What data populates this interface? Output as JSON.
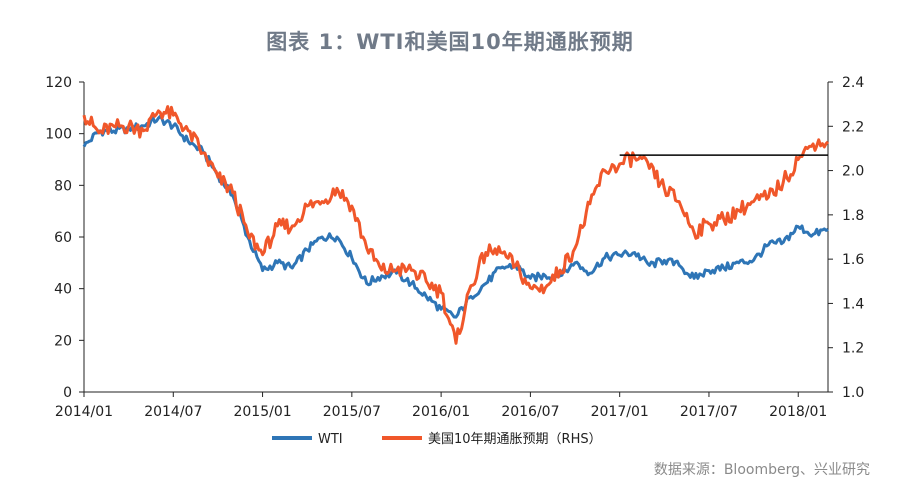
{
  "title": "图表 1：WTI和美国10年期通胀预期",
  "source": "数据来源：Bloomberg、兴业研究",
  "colors": {
    "wti": "#2e75b6",
    "breakeven": "#f0572a",
    "reference": "#000000",
    "axis": "#222222"
  },
  "chart_data": {
    "type": "line",
    "x_tick_labels": [
      "2014/01",
      "2014/07",
      "2015/01",
      "2015/07",
      "2016/01",
      "2016/07",
      "2017/01",
      "2017/07",
      "2018/01"
    ],
    "x_range": [
      "2014/01",
      "2018/03"
    ],
    "y_left": {
      "ticks": [
        "0",
        "20",
        "40",
        "60",
        "80",
        "100",
        "120"
      ],
      "range": [
        0,
        120
      ]
    },
    "y_right": {
      "ticks": [
        "1.0",
        "1.2",
        "1.4",
        "1.6",
        "1.8",
        "2.0",
        "2.2",
        "2.4"
      ],
      "range": [
        1.0,
        2.4
      ]
    },
    "grid": false,
    "legend_position": "bottom",
    "series": [
      {
        "name": "WTI",
        "axis": "left",
        "color": "#2e75b6",
        "points": [
          [
            "2014/01",
            95
          ],
          [
            "2014/02",
            101
          ],
          [
            "2014/03",
            101
          ],
          [
            "2014/04",
            102
          ],
          [
            "2014/05",
            103
          ],
          [
            "2014/06",
            106
          ],
          [
            "2014/07",
            103
          ],
          [
            "2014/08",
            97
          ],
          [
            "2014/09",
            93
          ],
          [
            "2014/10",
            84
          ],
          [
            "2014/11",
            76
          ],
          [
            "2014/12",
            60
          ],
          [
            "2015/01",
            47
          ],
          [
            "2015/02",
            50
          ],
          [
            "2015/03",
            48
          ],
          [
            "2015/04",
            55
          ],
          [
            "2015/05",
            60
          ],
          [
            "2015/06",
            60
          ],
          [
            "2015/07",
            52
          ],
          [
            "2015/08",
            42
          ],
          [
            "2015/09",
            45
          ],
          [
            "2015/10",
            46
          ],
          [
            "2015/11",
            42
          ],
          [
            "2015/12",
            37
          ],
          [
            "2016/01",
            32
          ],
          [
            "2016/02",
            29
          ],
          [
            "2016/03",
            37
          ],
          [
            "2016/04",
            42
          ],
          [
            "2016/05",
            48
          ],
          [
            "2016/06",
            49
          ],
          [
            "2016/07",
            44
          ],
          [
            "2016/08",
            45
          ],
          [
            "2016/09",
            45
          ],
          [
            "2016/10",
            50
          ],
          [
            "2016/11",
            46
          ],
          [
            "2016/12",
            52
          ],
          [
            "2017/01",
            53
          ],
          [
            "2017/02",
            54
          ],
          [
            "2017/03",
            49
          ],
          [
            "2017/04",
            51
          ],
          [
            "2017/05",
            49
          ],
          [
            "2017/06",
            44
          ],
          [
            "2017/07",
            47
          ],
          [
            "2017/08",
            48
          ],
          [
            "2017/09",
            50
          ],
          [
            "2017/10",
            51
          ],
          [
            "2017/11",
            57
          ],
          [
            "2017/12",
            58
          ],
          [
            "2018/01",
            64
          ],
          [
            "2018/02",
            61
          ],
          [
            "2018/03",
            63
          ]
        ]
      },
      {
        "name": "美国10年期通胀预期（RHS）",
        "axis": "right",
        "color": "#f0572a",
        "points": [
          [
            "2014/01",
            2.25
          ],
          [
            "2014/02",
            2.17
          ],
          [
            "2014/03",
            2.2
          ],
          [
            "2014/04",
            2.2
          ],
          [
            "2014/05",
            2.18
          ],
          [
            "2014/06",
            2.27
          ],
          [
            "2014/07",
            2.25
          ],
          [
            "2014/08",
            2.18
          ],
          [
            "2014/09",
            2.08
          ],
          [
            "2014/10",
            1.97
          ],
          [
            "2014/11",
            1.9
          ],
          [
            "2014/12",
            1.72
          ],
          [
            "2015/01",
            1.62
          ],
          [
            "2015/02",
            1.75
          ],
          [
            "2015/03",
            1.75
          ],
          [
            "2015/04",
            1.84
          ],
          [
            "2015/05",
            1.86
          ],
          [
            "2015/06",
            1.92
          ],
          [
            "2015/07",
            1.84
          ],
          [
            "2015/08",
            1.65
          ],
          [
            "2015/09",
            1.55
          ],
          [
            "2015/10",
            1.55
          ],
          [
            "2015/11",
            1.55
          ],
          [
            "2015/12",
            1.5
          ],
          [
            "2016/01",
            1.45
          ],
          [
            "2016/02",
            1.22
          ],
          [
            "2016/03",
            1.48
          ],
          [
            "2016/04",
            1.63
          ],
          [
            "2016/05",
            1.63
          ],
          [
            "2016/06",
            1.57
          ],
          [
            "2016/07",
            1.47
          ],
          [
            "2016/08",
            1.47
          ],
          [
            "2016/09",
            1.55
          ],
          [
            "2016/10",
            1.65
          ],
          [
            "2016/11",
            1.85
          ],
          [
            "2016/12",
            2.0
          ],
          [
            "2017/01",
            2.03
          ],
          [
            "2017/02",
            2.06
          ],
          [
            "2017/03",
            2.01
          ],
          [
            "2017/04",
            1.92
          ],
          [
            "2017/05",
            1.86
          ],
          [
            "2017/06",
            1.72
          ],
          [
            "2017/07",
            1.76
          ],
          [
            "2017/08",
            1.78
          ],
          [
            "2017/09",
            1.82
          ],
          [
            "2017/10",
            1.86
          ],
          [
            "2017/11",
            1.88
          ],
          [
            "2017/12",
            1.95
          ],
          [
            "2018/01",
            2.05
          ],
          [
            "2018/02",
            2.12
          ],
          [
            "2018/03",
            2.13
          ]
        ]
      }
    ],
    "reference_line": {
      "axis": "right",
      "value": 2.07,
      "from": "2017/01",
      "to": "2018/03"
    }
  }
}
